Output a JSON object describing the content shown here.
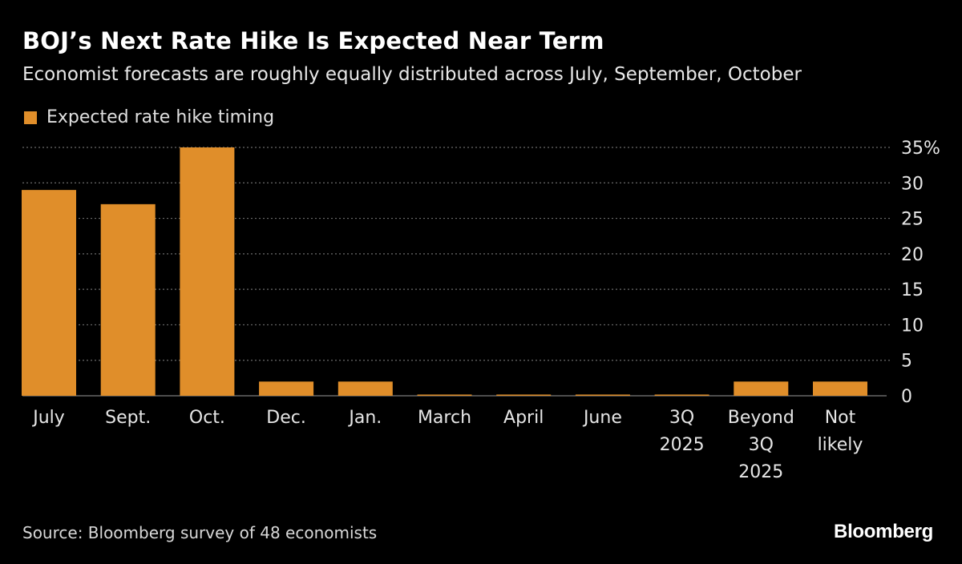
{
  "colors": {
    "bar": "#e08e2a",
    "background": "#000000",
    "grid": "#6a6a6a",
    "text": "#ffffff"
  },
  "brand": "Bloomberg",
  "source": "Source: Bloomberg survey of 48 economists",
  "chart_data": {
    "type": "bar",
    "title": "BOJ’s Next Rate Hike Is Expected Near Term",
    "subtitle": "Economist forecasts are roughly equally distributed across July, September, October",
    "xlabel": "",
    "ylabel": "",
    "legend": {
      "position": "top-left",
      "entries": [
        "Expected rate hike timing"
      ]
    },
    "grid": true,
    "y_axis_side": "right",
    "ylim": [
      0,
      35
    ],
    "yticks": [
      0,
      5,
      10,
      15,
      20,
      25,
      30,
      35
    ],
    "ytick_labels": [
      "0",
      "5",
      "10",
      "15",
      "20",
      "25",
      "30",
      "35%"
    ],
    "categories": [
      [
        "July"
      ],
      [
        "Sept."
      ],
      [
        "Oct."
      ],
      [
        "Dec."
      ],
      [
        "Jan."
      ],
      [
        "March"
      ],
      [
        "April"
      ],
      [
        "June"
      ],
      [
        "3Q",
        "2025"
      ],
      [
        "Beyond",
        "3Q",
        "2025"
      ],
      [
        "Not",
        "likely"
      ]
    ],
    "series": [
      {
        "name": "Expected rate hike timing",
        "values": [
          29,
          27,
          35,
          2,
          2,
          0,
          0,
          0,
          0,
          2,
          2
        ]
      }
    ]
  }
}
